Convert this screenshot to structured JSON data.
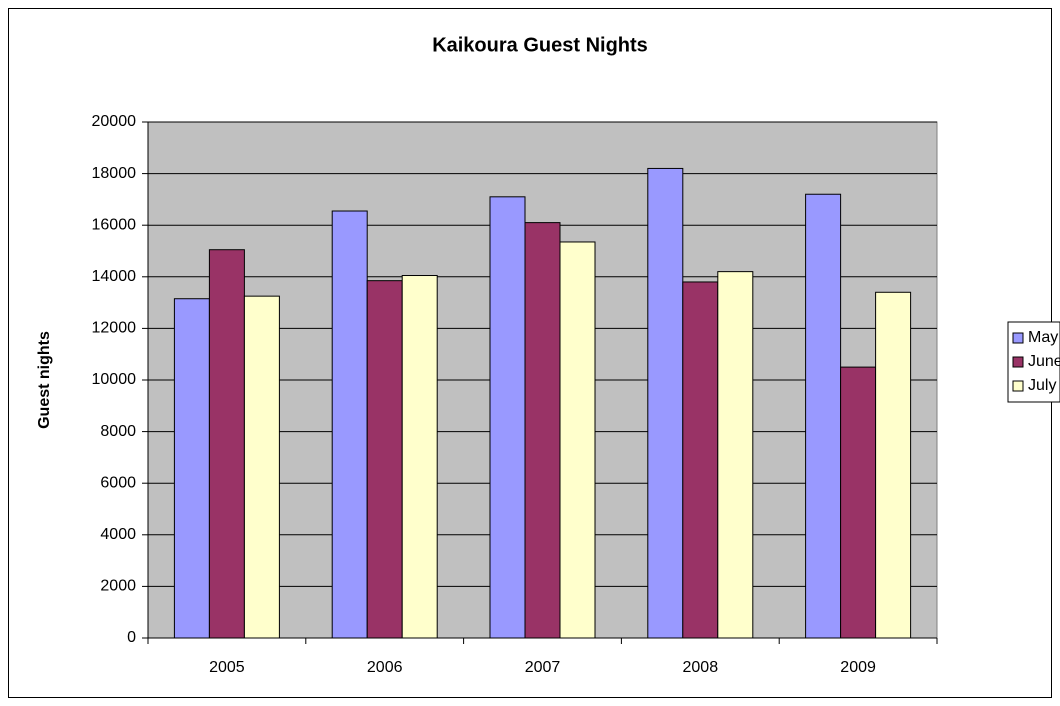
{
  "chart_data": {
    "type": "bar",
    "title": "Kaikoura Guest Nights",
    "y_label": "Guest nights",
    "categories": [
      "2005",
      "2006",
      "2007",
      "2008",
      "2009"
    ],
    "series": [
      {
        "name": "May",
        "color": "#9999ff",
        "values": [
          13150,
          16550,
          17100,
          18200,
          17200
        ]
      },
      {
        "name": "June",
        "color": "#993366",
        "values": [
          15050,
          13850,
          16100,
          13800,
          10500
        ]
      },
      {
        "name": "July",
        "color": "#ffffcc",
        "values": [
          13250,
          14050,
          15350,
          14200,
          13400
        ]
      }
    ],
    "ylim": [
      0,
      20000
    ],
    "yticks": [
      0,
      2000,
      4000,
      6000,
      8000,
      10000,
      12000,
      14000,
      16000,
      18000,
      20000
    ],
    "grid": true,
    "legend": "right",
    "plot_background": "#c0c0c0"
  }
}
